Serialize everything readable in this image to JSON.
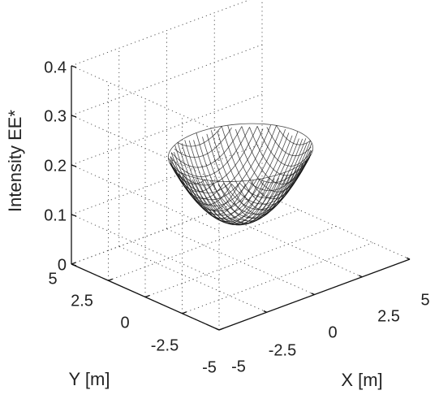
{
  "chart_data": {
    "type": "surface",
    "title": "",
    "xlabel": "X [m]",
    "ylabel": "Y [m]",
    "zlabel": "Intensity EE*",
    "x_ticks": [
      "-5",
      "-2.5",
      "0",
      "2.5",
      "5"
    ],
    "y_ticks": [
      "5",
      "2.5",
      "0",
      "-2.5",
      "-5"
    ],
    "z_ticks": [
      "0",
      "0.1",
      "0.2",
      "0.3",
      "0.4"
    ],
    "xlim": [
      -5,
      5
    ],
    "ylim": [
      -5,
      5
    ],
    "zlim": [
      0,
      0.4
    ],
    "grid": true,
    "surface": {
      "shape": "bowl",
      "center": [
        0,
        0
      ],
      "radius": 3,
      "min_value": 0.08,
      "rim_value": 0.22
    }
  }
}
